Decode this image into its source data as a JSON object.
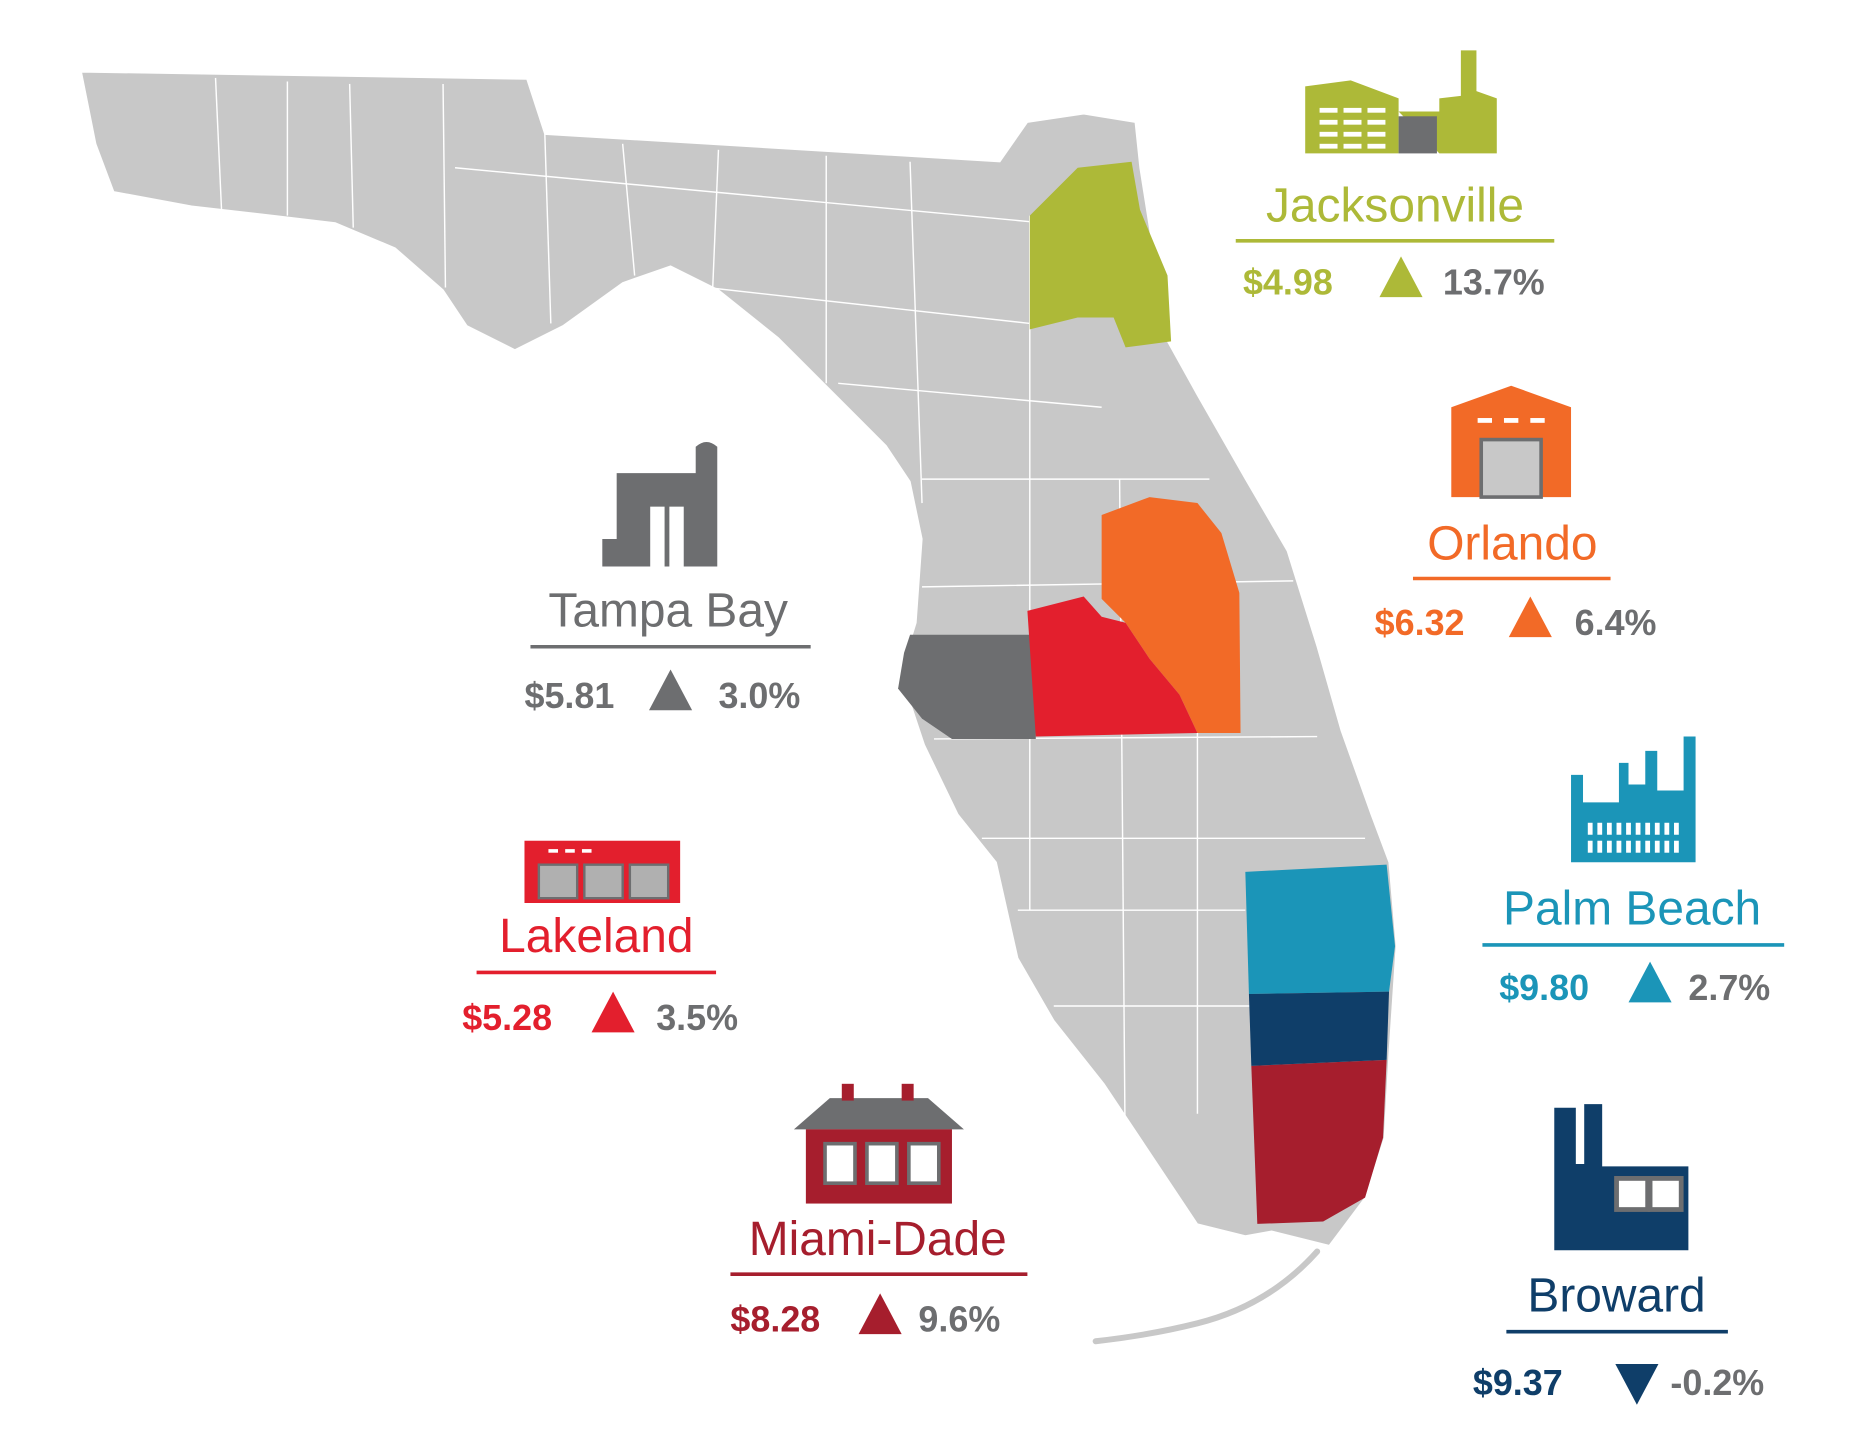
{
  "map": {
    "state_color": "#c8c8c8",
    "county_line_color": "#ffffff",
    "change_text_color": "#6d6e70"
  },
  "regions": [
    {
      "name": "Jacksonville",
      "price": "$4.98",
      "direction": "up",
      "change": "13.7%",
      "color": "#adb938",
      "icon": "factory-sawtooth-icon"
    },
    {
      "name": "Orlando",
      "price": "$6.32",
      "direction": "up",
      "change": "6.4%",
      "color": "#f26a27",
      "icon": "warehouse-icon"
    },
    {
      "name": "Tampa Bay",
      "price": "$5.81",
      "direction": "up",
      "change": "3.0%",
      "color": "#6d6e70",
      "icon": "plant-silo-icon"
    },
    {
      "name": "Palm Beach",
      "price": "$9.80",
      "direction": "up",
      "change": "2.7%",
      "color": "#1b95b8",
      "icon": "refinery-icon"
    },
    {
      "name": "Lakeland",
      "price": "$5.28",
      "direction": "up",
      "change": "3.5%",
      "color": "#e31f2d",
      "icon": "garage-bays-icon"
    },
    {
      "name": "Miami-Dade",
      "price": "$8.28",
      "direction": "up",
      "change": "9.6%",
      "color": "#a61e2d",
      "icon": "brick-building-icon"
    },
    {
      "name": "Broward",
      "price": "$9.37",
      "direction": "down",
      "change": "-0.2%",
      "color": "#0f3e69",
      "icon": "factory-chimney-icon"
    }
  ]
}
